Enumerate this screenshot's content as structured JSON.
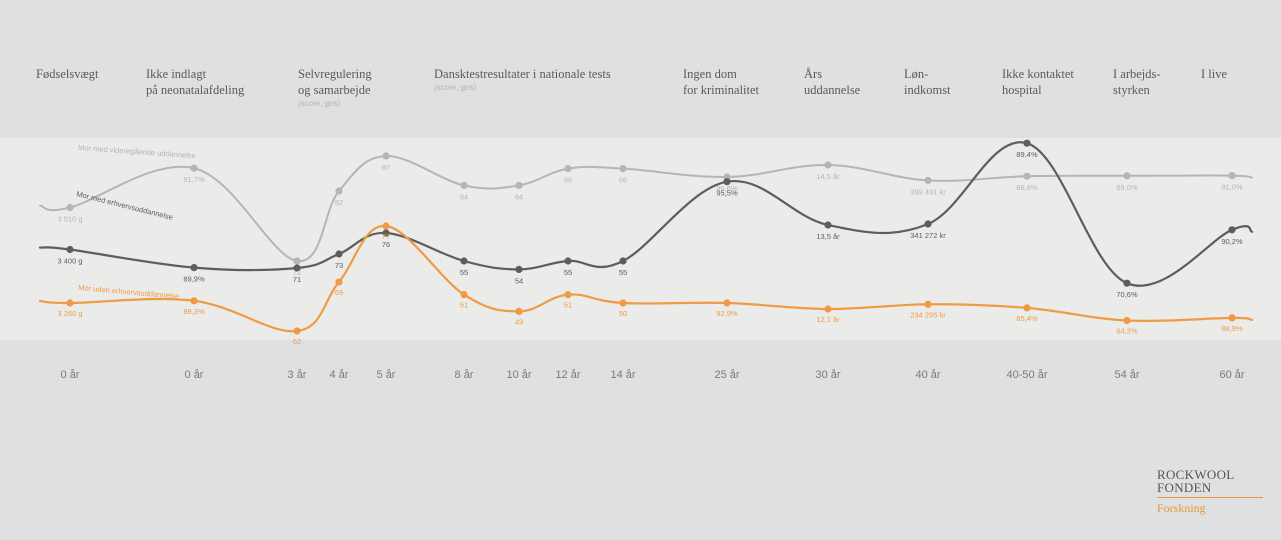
{
  "chart_data": {
    "type": "line",
    "categories": [
      "Fødselsvægt",
      "Ikke indlagt på neonatalafdeling",
      "Selvregulering og samarbejde",
      "",
      "",
      "Dansktestresultater i nationale tests",
      "",
      "",
      "",
      "Ingen dom for kriminalitet",
      "Års uddannelse",
      "Løn-indkomst",
      "Ikke kontaktet hospital",
      "I arbejds-styrken",
      "I live"
    ],
    "outcome_headers": [
      {
        "lines": [
          "Fødselsvægt"
        ],
        "sub": ""
      },
      {
        "lines": [
          "Ikke indlagt",
          "på neonatalafdeling"
        ],
        "sub": ""
      },
      {
        "lines": [
          "Selvregulering",
          "og samarbejde"
        ],
        "sub": "(score, gns)"
      },
      {
        "lines": [
          "Dansktestresultater i nationale tests"
        ],
        "sub": "(score, gns)"
      },
      {
        "lines": [
          "Ingen dom",
          "for kriminalitet"
        ],
        "sub": ""
      },
      {
        "lines": [
          "Års",
          "uddannelse"
        ],
        "sub": ""
      },
      {
        "lines": [
          "Løn-",
          "indkomst"
        ],
        "sub": ""
      },
      {
        "lines": [
          "Ikke kontaktet",
          "hospital"
        ],
        "sub": ""
      },
      {
        "lines": [
          "I arbejds-",
          "styrken"
        ],
        "sub": ""
      },
      {
        "lines": [
          "I live"
        ],
        "sub": ""
      }
    ],
    "ages": [
      "0 år",
      "0 år",
      "3 år",
      "4 år",
      "5 år",
      "8 år",
      "10 år",
      "12 år",
      "14 år",
      "25 år",
      "30 år",
      "40 år",
      "40-50 år",
      "54 år",
      "60 år"
    ],
    "series": [
      {
        "name": "Mor med videregående uddannelse",
        "color": "#b5b5b5",
        "values": [
          3510,
          91.7,
          72,
          82,
          87,
          64,
          64,
          66,
          66,
          95.6,
          14.5,
          399491,
          88.6,
          89.0,
          91.0
        ],
        "labels": [
          "3 510 g",
          "91,7%",
          "72",
          "82",
          "87",
          "64",
          "64",
          "66",
          "66",
          "95,6%",
          "14,5 år",
          "399 491 kr",
          "88,6%",
          "89,0%",
          "91,0%"
        ]
      },
      {
        "name": "Mor med erhvervsuddannelse",
        "color": "#5d5d5d",
        "values": [
          3400,
          89.9,
          71,
          73,
          76,
          55,
          54,
          55,
          55,
          95.5,
          13.5,
          341272,
          89.4,
          70.6,
          90.2
        ],
        "labels": [
          "3 400 g",
          "89,9%",
          "71",
          "73",
          "76",
          "55",
          "54",
          "55",
          "55",
          "95,5%",
          "13,5 år",
          "341 272 kr",
          "89,4%",
          "70,6%",
          "90,2%"
        ]
      },
      {
        "name": "Mor uden erhvervsuddannelse",
        "color": "#ef9b46",
        "values": [
          3260,
          89.3,
          62,
          69,
          77,
          51,
          49,
          51,
          50,
          92.9,
          12.1,
          234295,
          85.4,
          64.2,
          88.9
        ],
        "labels": [
          "3 260 g",
          "89,3%",
          "62",
          "69",
          "77",
          "51",
          "49",
          "51",
          "50",
          "92,9%",
          "12,1 år",
          "234 295 kr",
          "85,4%",
          "64,2%",
          "88,9%"
        ]
      }
    ],
    "ylabel": "",
    "grid": false,
    "legend": "inline"
  },
  "logo": {
    "line1": "ROCKWOOL",
    "line2": "FONDEN",
    "line3": "Forskning"
  }
}
